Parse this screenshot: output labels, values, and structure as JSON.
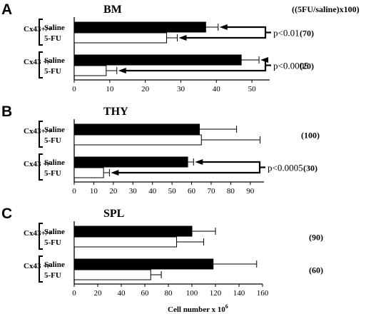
{
  "header_note": "((5FU/saline)x100)",
  "x_axis_label": "Cell number x 10",
  "x_axis_exponent": "6",
  "colors": {
    "saline": "#000000",
    "fu": "#ffffff",
    "stroke": "#000000"
  },
  "chart_data": [
    {
      "type": "bar",
      "panel": "A",
      "title": "BM",
      "categories": [
        "Cx43+/+",
        "Cx43 +/-"
      ],
      "series": [
        {
          "name": "Saline",
          "values": [
            37,
            47
          ],
          "errors": [
            3.5,
            5
          ]
        },
        {
          "name": "5-FU",
          "values": [
            26,
            9
          ],
          "errors": [
            3,
            3
          ]
        }
      ],
      "xlim": [
        0,
        55
      ],
      "xticks": [
        0,
        10,
        20,
        30,
        40,
        50
      ],
      "ratios": [
        "(70)",
        "(20)"
      ],
      "pvalues": [
        {
          "group": 0,
          "text": "p<0.01"
        },
        {
          "group": 1,
          "text": "p<0.0005"
        }
      ]
    },
    {
      "type": "bar",
      "panel": "B",
      "title": "THY",
      "categories": [
        "Cx43+/+",
        "Cx43 +/-"
      ],
      "series": [
        {
          "name": "Saline",
          "values": [
            64,
            58
          ],
          "errors": [
            19,
            3
          ]
        },
        {
          "name": "5-FU",
          "values": [
            65,
            15
          ],
          "errors": [
            30,
            3
          ]
        }
      ],
      "xlim": [
        0,
        97
      ],
      "xticks": [
        0,
        10,
        20,
        30,
        40,
        50,
        60,
        70,
        80,
        90
      ],
      "ratios": [
        "(100)",
        "(30)"
      ],
      "pvalues": [
        {
          "group": 1,
          "text": "p<0.0005"
        }
      ]
    },
    {
      "type": "bar",
      "panel": "C",
      "title": "SPL",
      "categories": [
        "Cx43+/+",
        "Cx43 +/-"
      ],
      "series": [
        {
          "name": "Saline",
          "values": [
            100,
            118
          ],
          "errors": [
            20,
            37
          ]
        },
        {
          "name": "5-FU",
          "values": [
            87,
            65
          ],
          "errors": [
            23,
            9
          ]
        }
      ],
      "xlim": [
        0,
        160
      ],
      "xticks": [
        0,
        20,
        40,
        60,
        80,
        100,
        120,
        140,
        160
      ],
      "ratios": [
        "(90)",
        "(60)"
      ],
      "pvalues": []
    }
  ]
}
